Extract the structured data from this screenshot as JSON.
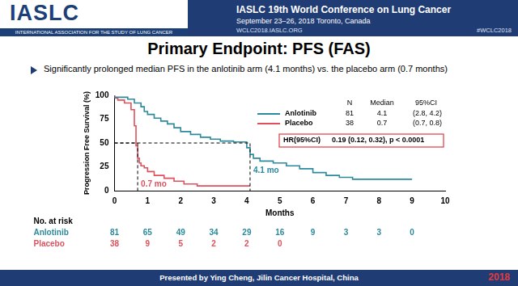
{
  "header": {
    "logo": "IASLC",
    "association": "INTERNATIONAL ASSOCIATION FOR THE STUDY OF LUNG CANCER",
    "conference": "IASLC 19th World Conference on Lung Cancer",
    "dates": "September 23–26, 2018  Toronto, Canada",
    "website": "WCLC2018.IASLC.ORG",
    "hashtag": "#WCLC2018"
  },
  "footer": {
    "text": "Presented by Ying Cheng, Jilin Cancer Hospital, China",
    "year": "2018"
  },
  "chart_data": {
    "type": "step",
    "title": "Primary Endpoint: PFS (FAS)",
    "subtitle": "Significantly prolonged median PFS in the anlotinib arm (4.1 months) vs. the placebo arm (0.7 months)",
    "x_label": "Months",
    "y_label": "Progression Free Survival (%)",
    "xlim": [
      0,
      10
    ],
    "xticks": [
      0,
      1,
      2,
      3,
      4,
      5,
      6,
      7,
      8,
      9,
      10
    ],
    "ylim": [
      0,
      100
    ],
    "yticks": [
      0,
      25,
      50,
      75,
      100
    ],
    "grid": false,
    "legend": "upper right",
    "table_columns": [
      "N",
      "Median",
      "95%CI"
    ],
    "median_y": 50,
    "series": [
      {
        "name": "Anlotinib",
        "color": "#2b8a9c",
        "n": 81,
        "median": 4.1,
        "median_label": "4.1 mo",
        "ci": [
          2.8,
          4.2
        ],
        "ci_label": "(2.8, 4.2)",
        "x": [
          0,
          0.4,
          0.6,
          0.8,
          0.9,
          1.0,
          1.2,
          1.4,
          1.6,
          1.8,
          2.0,
          2.3,
          2.6,
          2.9,
          3.2,
          3.6,
          4.0,
          4.1,
          4.2,
          4.4,
          4.8,
          5.2,
          5.6,
          6.0,
          6.4,
          6.8,
          7.2,
          8.0,
          9.0
        ],
        "values": [
          100,
          98,
          96,
          92,
          88,
          83,
          80,
          76,
          73,
          70,
          66,
          62,
          59,
          56,
          54,
          52,
          51,
          45,
          38,
          34,
          31,
          29,
          26,
          23,
          19,
          16,
          14,
          12,
          12
        ]
      },
      {
        "name": "Placebo",
        "color": "#e0505c",
        "n": 38,
        "median": 0.7,
        "median_label": "0.7 mo",
        "ci": [
          0.7,
          0.8
        ],
        "ci_label": "(0.7, 0.8)",
        "x": [
          0,
          0.1,
          0.3,
          0.5,
          0.6,
          0.65,
          0.7,
          0.75,
          0.8,
          0.9,
          1.0,
          1.2,
          1.5,
          1.8,
          2.1,
          2.5,
          2.8,
          4.1
        ],
        "values": [
          100,
          97,
          95,
          92,
          85,
          68,
          47,
          34,
          29,
          26,
          24,
          20,
          16,
          13,
          10,
          7,
          5,
          5
        ]
      }
    ],
    "hr_box": {
      "label": "HR(95%CI)",
      "text": "0.19 (0.12, 0.32), p < 0.0001",
      "color": "#e03a3e"
    },
    "risk_table": {
      "title": "No. at risk",
      "times": [
        0,
        1,
        2,
        3,
        4,
        5,
        6,
        7,
        8,
        9
      ],
      "rows": [
        {
          "name": "Anlotinib",
          "color": "#2b8a9c",
          "values": [
            81,
            65,
            49,
            34,
            29,
            16,
            9,
            3,
            3,
            0
          ]
        },
        {
          "name": "Placebo",
          "color": "#e0505c",
          "values": [
            38,
            9,
            5,
            2,
            2,
            0
          ]
        }
      ]
    }
  }
}
